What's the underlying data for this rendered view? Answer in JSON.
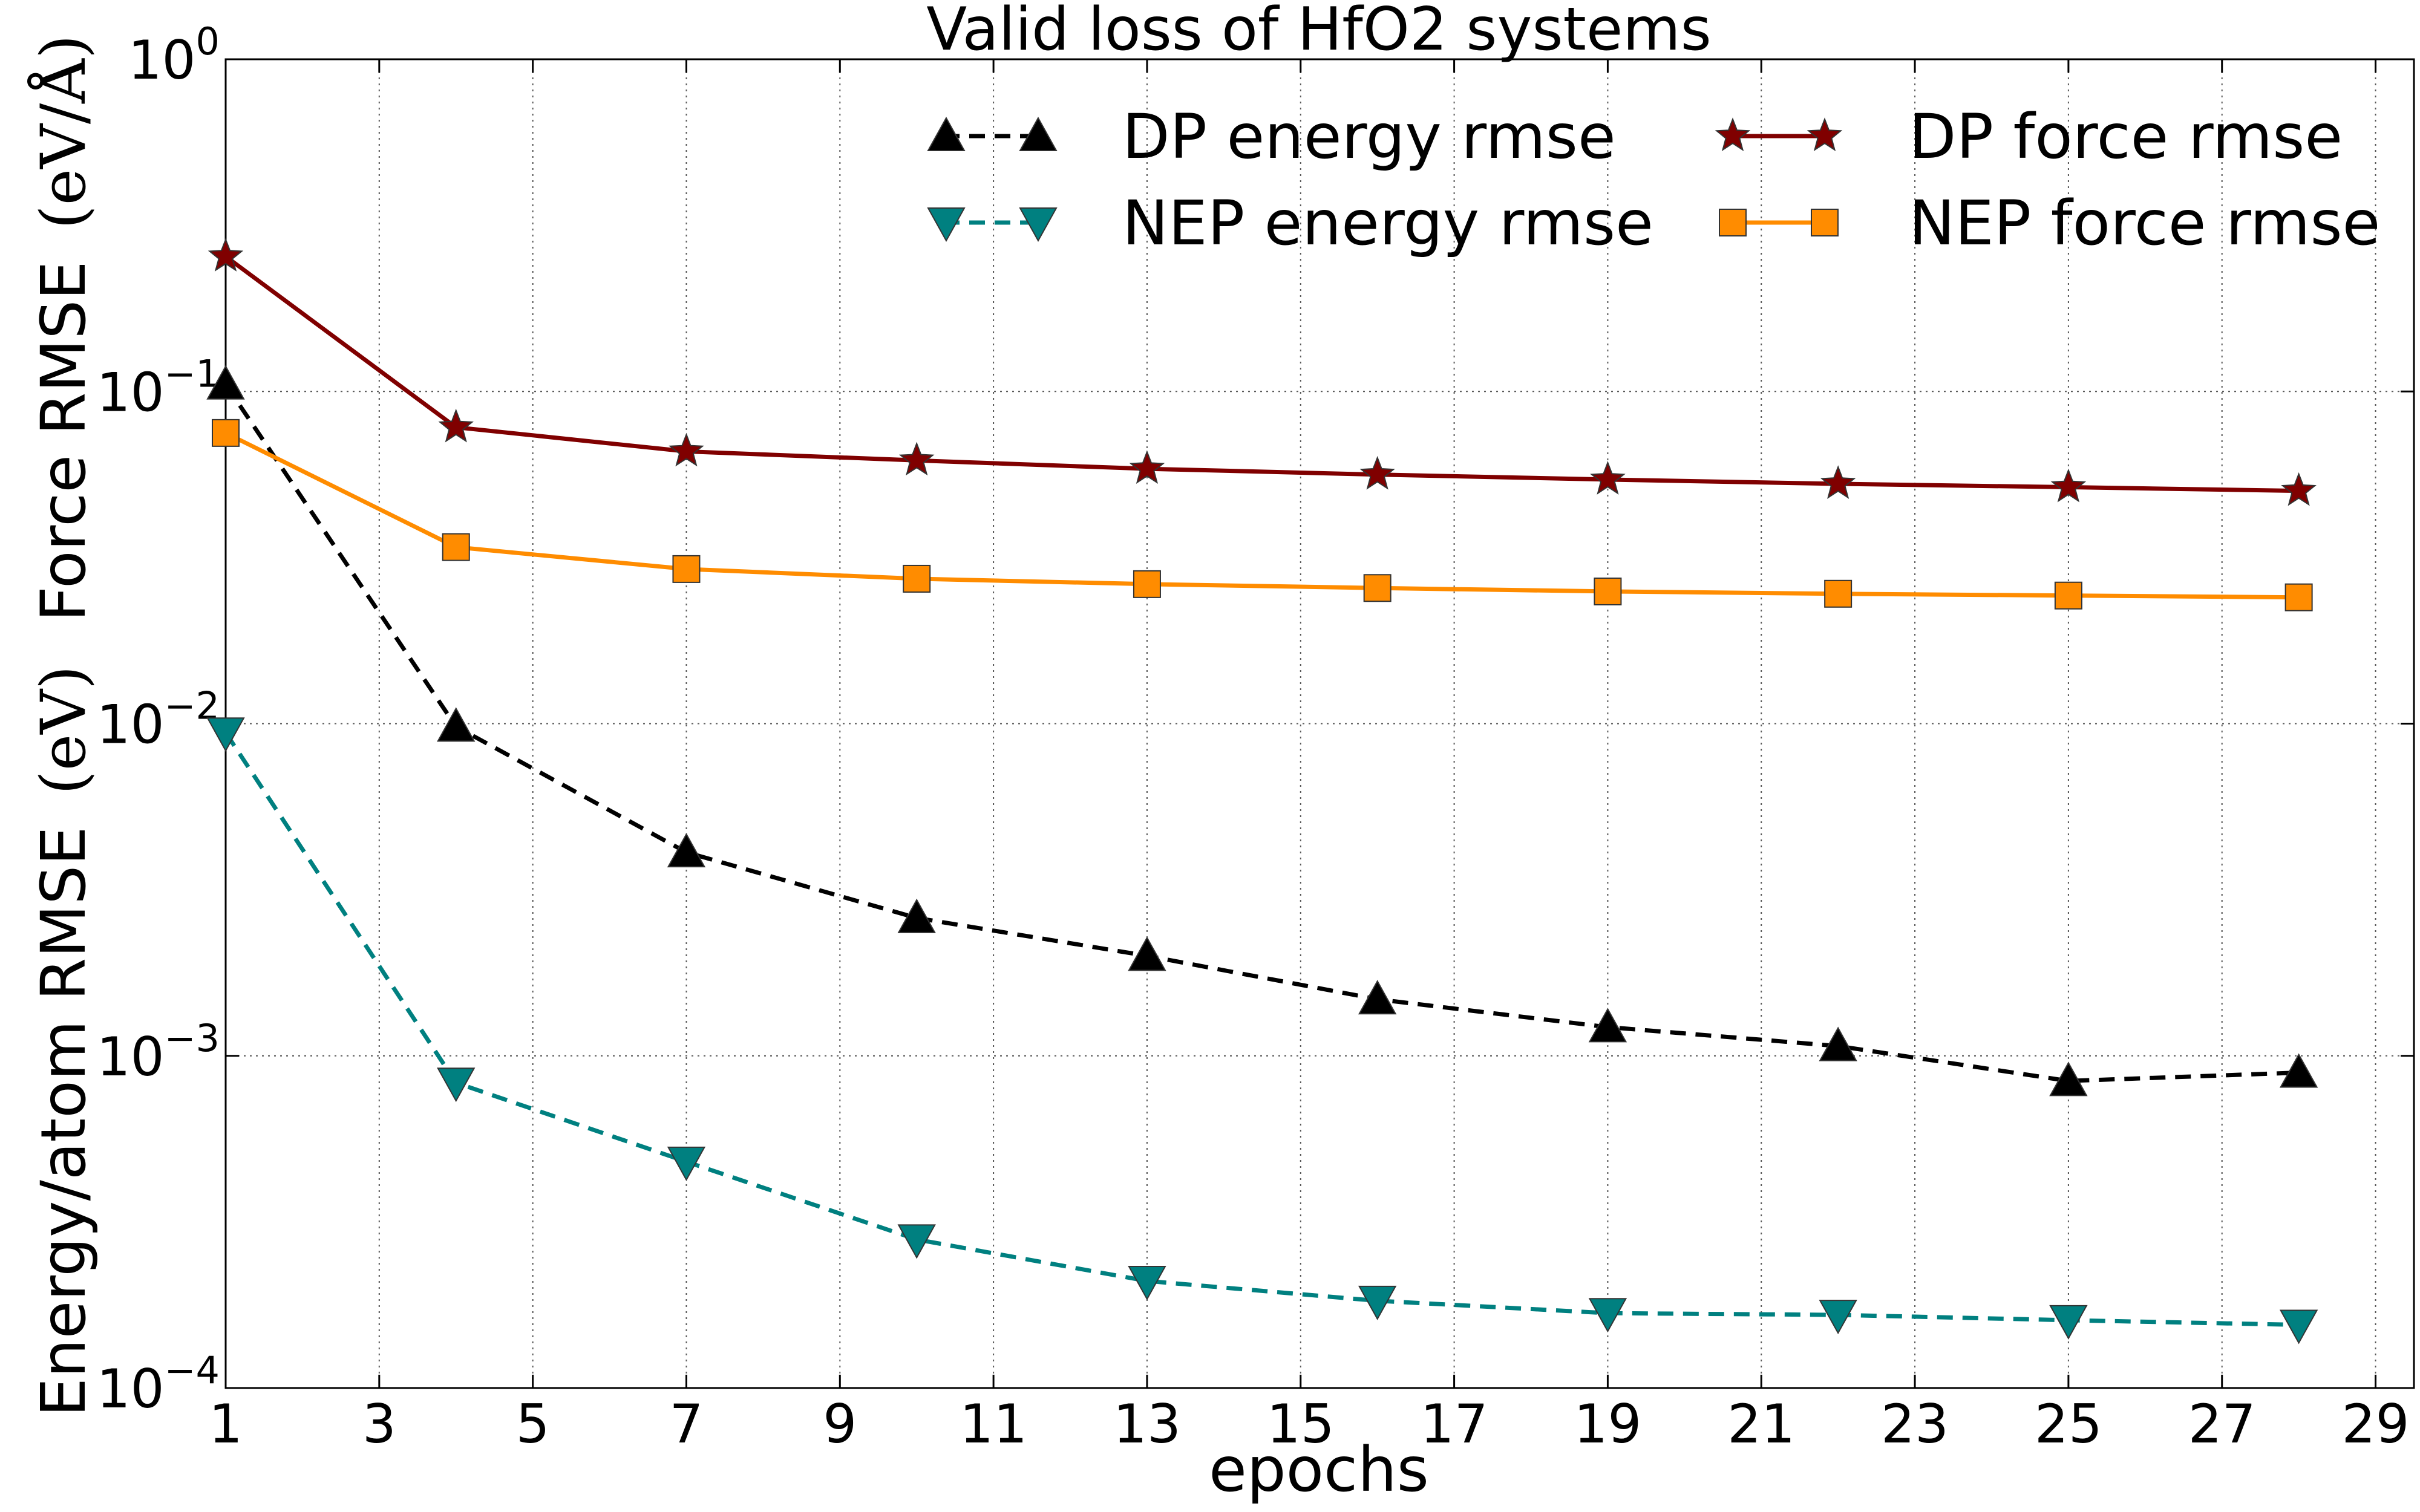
{
  "chart_data": {
    "type": "line",
    "title": "Valid loss of HfO2 systems",
    "xlabel": "epochs",
    "ylabel": {
      "energy_part": "Energy/atom RMSE",
      "energy_unit": "(eV)",
      "force_part": "Force RMSE",
      "force_unit": "(eV/Å)"
    },
    "xlim": [
      1,
      29.5
    ],
    "ylim": [
      0.0001,
      1
    ],
    "yscale": "log",
    "grid": true,
    "legend_position": "top-right",
    "x_ticks": [
      "1",
      "3",
      "5",
      "7",
      "9",
      "11",
      "13",
      "15",
      "17",
      "19",
      "21",
      "23",
      "25",
      "27",
      "29"
    ],
    "y_ticks": [
      {
        "base": "10",
        "exp": "0",
        "value": 1
      },
      {
        "base": "10",
        "exp": "−1",
        "value": 0.1
      },
      {
        "base": "10",
        "exp": "−2",
        "value": 0.01
      },
      {
        "base": "10",
        "exp": "−3",
        "value": 0.001
      },
      {
        "base": "10",
        "exp": "−4",
        "value": 0.0001
      }
    ],
    "x": [
      1,
      4,
      7,
      10,
      13,
      16,
      19,
      22,
      25,
      28
    ],
    "series": [
      {
        "name": "DP energy rmse",
        "color": "#000000",
        "linestyle": "dashed",
        "marker": "triangle-up",
        "values": [
          0.105,
          0.0098,
          0.0041,
          0.0026,
          0.002,
          0.00148,
          0.00122,
          0.00107,
          0.00084,
          0.00089
        ]
      },
      {
        "name": "NEP energy rmse",
        "color": "#008080",
        "linestyle": "dashed",
        "marker": "triangle-down",
        "values": [
          0.0094,
          0.00083,
          0.00048,
          0.00028,
          0.00021,
          0.000183,
          0.000168,
          0.000166,
          0.00016,
          0.000155
        ]
      },
      {
        "name": "DP force rmse",
        "color": "#800000",
        "linestyle": "solid",
        "marker": "star",
        "values": [
          0.255,
          0.078,
          0.066,
          0.062,
          0.0585,
          0.0562,
          0.0543,
          0.0527,
          0.0515,
          0.0502
        ]
      },
      {
        "name": "NEP force rmse",
        "color": "#ff8c00",
        "linestyle": "solid",
        "marker": "square",
        "values": [
          0.075,
          0.034,
          0.0292,
          0.0273,
          0.0263,
          0.0256,
          0.025,
          0.0246,
          0.0243,
          0.024
        ]
      }
    ]
  }
}
